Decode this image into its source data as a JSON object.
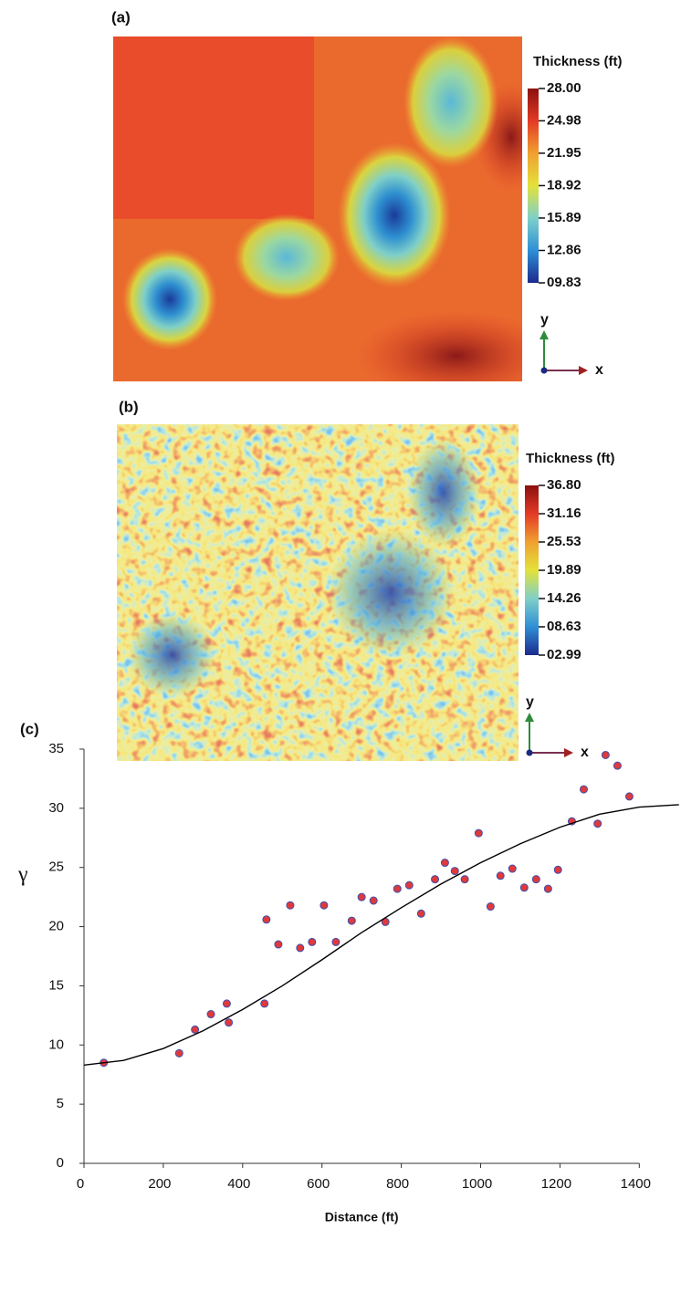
{
  "chart_data": [
    {
      "type": "heatmap",
      "panel_label": "(a)",
      "colorbar_title": "Thickness (ft)",
      "clim": [
        9.83,
        28
      ],
      "colorbar_ticks": [
        {
          "value": 28,
          "label": "28.00"
        },
        {
          "value": 24.98,
          "label": "24.98"
        },
        {
          "value": 21.95,
          "label": "21.95"
        },
        {
          "value": 18.92,
          "label": "18.92"
        },
        {
          "value": 15.89,
          "label": "15.89"
        },
        {
          "value": 12.86,
          "label": "12.86"
        },
        {
          "value": 9.83,
          "label": "09.83"
        }
      ],
      "colormap": [
        "#1b2a8c",
        "#2f8fd6",
        "#7fd0c8",
        "#e3e23a",
        "#f0a030",
        "#e33a25",
        "#8c1010"
      ],
      "axis_labels": {
        "x": "x",
        "y": "y"
      }
    },
    {
      "type": "heatmap",
      "panel_label": "(b)",
      "colorbar_title": "Thickness (ft)",
      "clim": [
        2.99,
        36.8
      ],
      "colorbar_ticks": [
        {
          "value": 36.8,
          "label": "36.80"
        },
        {
          "value": 31.16,
          "label": "31.16"
        },
        {
          "value": 25.53,
          "label": "25.53"
        },
        {
          "value": 19.89,
          "label": "19.89"
        },
        {
          "value": 14.26,
          "label": "14.26"
        },
        {
          "value": 8.63,
          "label": "08.63"
        },
        {
          "value": 2.99,
          "label": "02.99"
        }
      ],
      "colormap": [
        "#1b2a8c",
        "#2f8fd6",
        "#7fd0c8",
        "#e3e23a",
        "#f0a030",
        "#e33a25",
        "#8c1010"
      ],
      "axis_labels": {
        "x": "x",
        "y": "y"
      }
    },
    {
      "type": "scatter",
      "panel_label": "(c)",
      "x_label": "Distance (ft)",
      "y_label": "γ",
      "xlim": [
        0,
        1500
      ],
      "ylim": [
        0,
        35
      ],
      "xticks": [
        0,
        200,
        400,
        600,
        800,
        1000,
        1200,
        1400
      ],
      "yticks": [
        0,
        5,
        10,
        15,
        20,
        25,
        30,
        35
      ],
      "series": [
        {
          "type": "scatter",
          "color": "#e0393b",
          "edge_color": "#3b4fb0",
          "x": [
            50,
            240,
            280,
            320,
            360,
            365,
            455,
            460,
            490,
            520,
            545,
            575,
            605,
            635,
            675,
            700,
            730,
            760,
            790,
            820,
            850,
            885,
            910,
            935,
            960,
            995,
            1025,
            1050,
            1080,
            1110,
            1140,
            1170,
            1195,
            1230,
            1260,
            1295,
            1315,
            1345,
            1375
          ],
          "values": [
            8.5,
            9.3,
            11.3,
            12.6,
            13.5,
            11.9,
            13.5,
            20.6,
            18.5,
            21.8,
            18.2,
            18.7,
            21.8,
            18.7,
            20.5,
            22.5,
            22.2,
            20.4,
            23.2,
            23.5,
            21.1,
            24.0,
            25.4,
            24.7,
            24.0,
            27.9,
            21.7,
            24.3,
            24.9,
            23.3,
            24.0,
            23.2,
            24.8,
            28.9,
            31.6,
            28.7,
            34.5,
            33.6,
            31.0
          ]
        },
        {
          "type": "line",
          "color": "#000000",
          "x": [
            0,
            100,
            200,
            300,
            400,
            500,
            600,
            700,
            800,
            900,
            1000,
            1100,
            1200,
            1300,
            1400,
            1500
          ],
          "values": [
            8.3,
            8.7,
            9.7,
            11.2,
            13.0,
            15.0,
            17.2,
            19.5,
            21.6,
            23.6,
            25.4,
            27.0,
            28.4,
            29.5,
            30.1,
            30.3
          ]
        }
      ]
    }
  ]
}
